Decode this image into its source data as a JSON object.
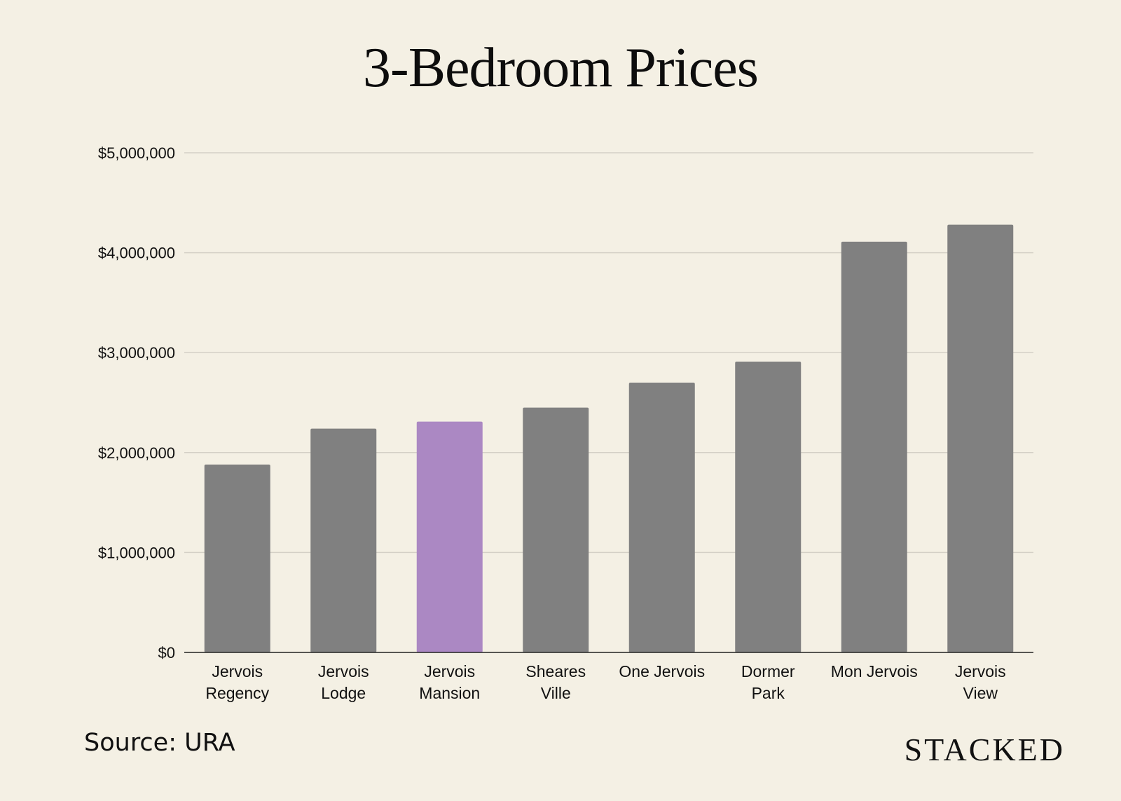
{
  "page": {
    "title": "3-Bedroom Prices",
    "source": "Source: URA",
    "brand": "STACKED",
    "background": "#f4f0e4"
  },
  "chart_data": {
    "type": "bar",
    "categories": [
      [
        "Jervois",
        "Regency"
      ],
      [
        "Jervois",
        "Lodge"
      ],
      [
        "Jervois",
        "Mansion"
      ],
      [
        "Sheares",
        "Ville"
      ],
      [
        "One Jervois"
      ],
      [
        "Dormer",
        "Park"
      ],
      [
        "Mon Jervois"
      ],
      [
        "Jervois",
        "View"
      ]
    ],
    "values": [
      1880000,
      2240000,
      2310000,
      2450000,
      2700000,
      2910000,
      4110000,
      4280000
    ],
    "highlight_index": 2,
    "colors": {
      "bar": "#808080",
      "highlight": "#ab88c3",
      "grid": "#d4d0c6",
      "axis": "#222222"
    },
    "ylim": [
      0,
      5000000
    ],
    "yticks": [
      0,
      1000000,
      2000000,
      3000000,
      4000000,
      5000000
    ],
    "ytick_labels": [
      "$0",
      "$1,000,000",
      "$2,000,000",
      "$3,000,000",
      "$4,000,000",
      "$5,000,000"
    ],
    "title": "3-Bedroom Prices",
    "xlabel": "",
    "ylabel": "",
    "grid": true
  }
}
